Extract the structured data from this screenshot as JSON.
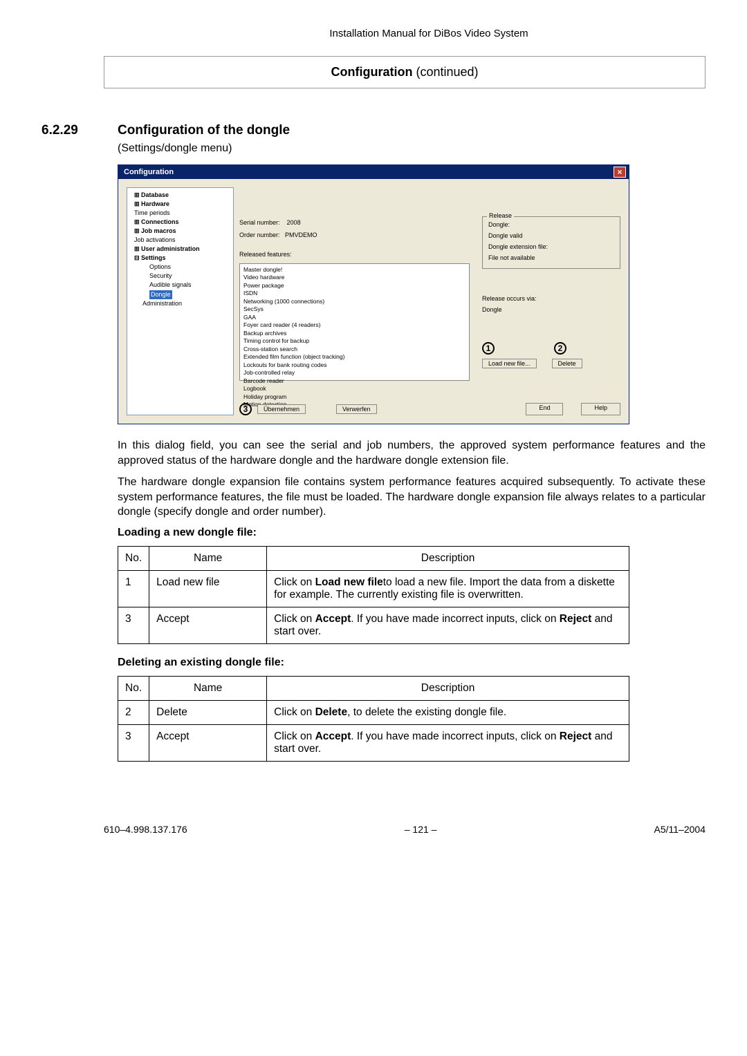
{
  "header": "Installation Manual for DiBos Video System",
  "section_title": {
    "bold": "Configuration",
    "rest": " (continued)"
  },
  "section_number": "6.2.29",
  "section_heading": "Configuration of the dongle",
  "section_sub": "(Settings/dongle menu)",
  "dialog": {
    "title": "Configuration",
    "close": "×",
    "tree": [
      {
        "label": "Database",
        "bold": true,
        "prefix": "⊞"
      },
      {
        "label": "Hardware",
        "bold": true,
        "prefix": "⊞"
      },
      {
        "label": "Time periods",
        "bold": false,
        "prefix": " "
      },
      {
        "label": "Connections",
        "bold": true,
        "prefix": "⊞"
      },
      {
        "label": "Job macros",
        "bold": true,
        "prefix": "⊞"
      },
      {
        "label": "Job activations",
        "bold": false,
        "prefix": " "
      },
      {
        "label": "User administration",
        "bold": true,
        "prefix": "⊞"
      },
      {
        "label": "Settings",
        "bold": true,
        "prefix": "⊟"
      }
    ],
    "tree_sub": [
      "Options",
      "Security",
      "Audible signals"
    ],
    "tree_selected": "Dongle",
    "tree_after": "Administration",
    "serial_label": "Serial number:",
    "serial_value": "2008",
    "order_label": "Order number:",
    "order_value": "PMVDEMO",
    "released_label": "Released features:",
    "released_features": [
      "Master dongle!",
      "Video hardware",
      "Power package",
      "ISDN",
      "Networking (1000 connections)",
      "SecSys",
      "GAA",
      "Foyer card reader (4 readers)",
      "Backup archives",
      "Timing control for backup",
      "Cross-station search",
      "Extended film function (object tracking)",
      "Lockouts for bank routing codes",
      "Job-controlled relay",
      "Barcode reader",
      "Logbook",
      "Holiday program",
      "Motion detection"
    ],
    "release_legend": "Release",
    "rel_dongle_label": "Dongle:",
    "rel_dongle_value": "Dongle valid",
    "rel_ext_label": "Dongle extension file:",
    "rel_ext_value": "File not available",
    "occurs_label": "Release occurs via:",
    "occurs_value": "Dongle",
    "btn_load": "Load new file...",
    "btn_delete": "Delete",
    "btn_ubernehmen": "Übernehmen",
    "btn_verwerfen": "Verwerfen",
    "btn_end": "End",
    "btn_help": "Help",
    "callout1": "1",
    "callout2": "2",
    "callout3": "3"
  },
  "para1": "In this dialog field, you can see the serial and job numbers, the approved system performance features and the approved status of the hardware dongle and the hardware dongle extension file.",
  "para2": "The hardware dongle expansion file contains system performance features acquired subsequently. To activate these system performance features, the file must be loaded. The hardware dongle expansion file always relates to a particular dongle (specify dongle and order number).",
  "sub1": "Loading a new dongle file:",
  "table1": {
    "headers": [
      "No.",
      "Name",
      "Description"
    ],
    "rows": [
      {
        "no": "1",
        "name": "Load new file",
        "desc_pre": "Click on ",
        "desc_bold": "Load new file",
        "desc_post": "to load a new file. Import the data from a diskette for example. The currently existing file is overwritten."
      },
      {
        "no": "3",
        "name": "Accept",
        "desc_pre": "Click on ",
        "desc_bold": "Accept",
        "desc_post": ". If you have made incorrect inputs, click on ",
        "desc_bold2": "Reject",
        "desc_post2": " and start over."
      }
    ]
  },
  "sub2": "Deleting an existing dongle file:",
  "table2": {
    "headers": [
      "No.",
      "Name",
      "Description"
    ],
    "rows": [
      {
        "no": "2",
        "name": "Delete",
        "desc_pre": "Click on ",
        "desc_bold": "Delete",
        "desc_post": ", to delete the existing dongle file."
      },
      {
        "no": "3",
        "name": "Accept",
        "desc_pre": "Click on ",
        "desc_bold": "Accept",
        "desc_post": ". If you have made incorrect inputs, click on ",
        "desc_bold2": "Reject",
        "desc_post2": " and start over."
      }
    ]
  },
  "footer": {
    "left": "610–4.998.137.176",
    "center": "– 121 –",
    "right": "A5/11–2004"
  }
}
